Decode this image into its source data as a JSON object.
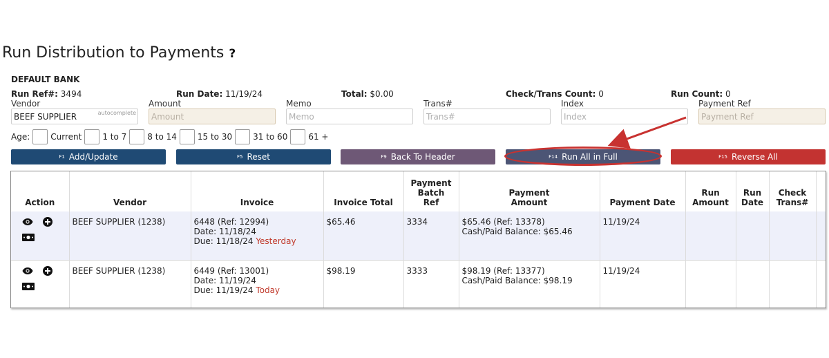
{
  "page": {
    "title": "Run Distribution to Payments",
    "help_glyph": "?"
  },
  "bank": {
    "name": "DEFAULT BANK"
  },
  "info": {
    "run_ref_label": "Run Ref#:",
    "run_ref_value": "3494",
    "run_date_label": "Run Date:",
    "run_date_value": "11/19/24",
    "total_label": "Total:",
    "total_value": "$0.00",
    "check_count_label": "Check/Trans Count:",
    "check_count_value": "0",
    "run_count_label": "Run Count:",
    "run_count_value": "0"
  },
  "fields": {
    "vendor": {
      "label": "Vendor",
      "value": "BEEF SUPPLIER",
      "tag": "autocomplete"
    },
    "amount": {
      "label": "Amount",
      "placeholder": "Amount"
    },
    "memo": {
      "label": "Memo",
      "placeholder": "Memo"
    },
    "trans": {
      "label": "Trans#",
      "placeholder": "Trans#"
    },
    "index": {
      "label": "Index",
      "placeholder": "Index"
    },
    "payment_ref": {
      "label": "Payment Ref",
      "placeholder": "Payment Ref"
    }
  },
  "age": {
    "label": "Age:",
    "options": [
      "Current",
      "1 to 7",
      "8 to 14",
      "15 to 30",
      "31 to 60",
      "61 +"
    ]
  },
  "buttons": {
    "add_update": {
      "key": "F1",
      "label": "Add/Update",
      "color": "#1f4a74"
    },
    "reset": {
      "key": "F5",
      "label": "Reset",
      "color": "#1f4a74"
    },
    "back_to_header": {
      "key": "F9",
      "label": "Back To Header",
      "color": "#6e5876"
    },
    "run_all_in_full": {
      "key": "F14",
      "label": "Run All in Full",
      "color": "#4c5575"
    },
    "reverse_all": {
      "key": "F15",
      "label": "Reverse All",
      "color": "#c33331"
    }
  },
  "annotation": {
    "color": "#c83230"
  },
  "table": {
    "headers": {
      "action": "Action",
      "vendor": "Vendor",
      "invoice": "Invoice",
      "invoice_total": "Invoice Total",
      "payment_batch_ref": [
        "Payment",
        "Batch",
        "Ref"
      ],
      "payment_amount": [
        "Payment",
        "Amount"
      ],
      "payment_date": "Payment Date",
      "run_amount": [
        "Run",
        "Amount"
      ],
      "run_date": [
        "Run",
        "Date"
      ],
      "check_trans": [
        "Check",
        "Trans#"
      ]
    },
    "rows": [
      {
        "vendor": "BEEF SUPPLIER (1238)",
        "invoice_line": "6448 (Ref: 12994)",
        "invoice_date": "Date: 11/18/24",
        "invoice_due": "Due: 11/18/24",
        "due_note": "Yesterday",
        "invoice_total": "$65.46",
        "batch_ref": "3334",
        "payment_amount": "$65.46 (Ref: 13378)",
        "cash_balance": "Cash/Paid Balance: $65.46",
        "payment_date": "11/19/24",
        "run_amount": "",
        "run_date": "",
        "check_trans": ""
      },
      {
        "vendor": "BEEF SUPPLIER (1238)",
        "invoice_line": "6449 (Ref: 13001)",
        "invoice_date": "Date: 11/19/24",
        "invoice_due": "Due: 11/19/24",
        "due_note": "Today",
        "invoice_total": "$98.19",
        "batch_ref": "3333",
        "payment_amount": "$98.19 (Ref: 13377)",
        "cash_balance": "Cash/Paid Balance: $98.19",
        "payment_date": "11/19/24",
        "run_amount": "",
        "run_date": "",
        "check_trans": ""
      }
    ]
  }
}
